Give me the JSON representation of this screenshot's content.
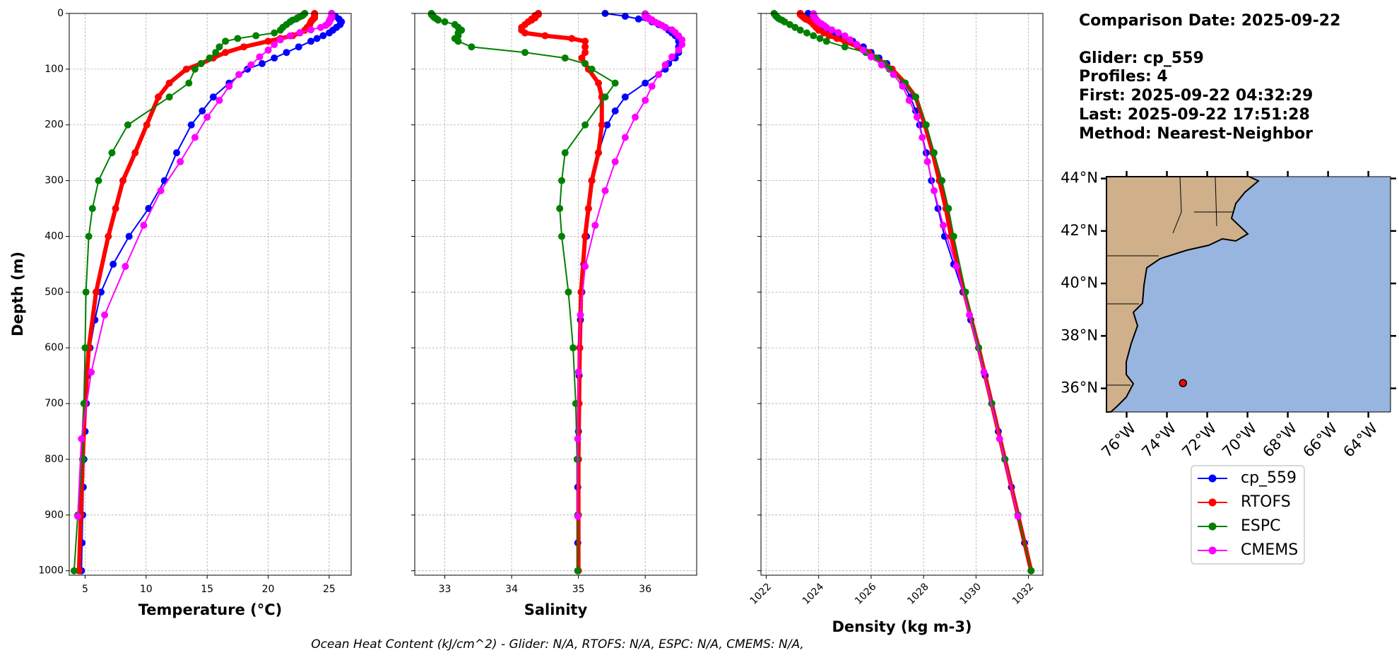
{
  "chart_data": [
    {
      "type": "profile",
      "ylabel": "Depth (m)",
      "ylim": [
        0,
        1008
      ],
      "y_inverted": true,
      "yticks": [
        0,
        100,
        200,
        300,
        400,
        500,
        600,
        700,
        800,
        900,
        1000
      ],
      "grid": true,
      "panels": [
        {
          "xlabel": "Temperature (°C)",
          "xlim": [
            3.7,
            26.8
          ],
          "xticks": [
            5,
            10,
            15,
            20,
            25
          ]
        },
        {
          "xlabel": "Salinity",
          "xlim": [
            32.55,
            36.77
          ],
          "xticks": [
            33,
            34,
            35,
            36
          ]
        },
        {
          "xlabel": "Density (kg m-3)",
          "xlim": [
            1021.8,
            1032.55
          ],
          "xticks": [
            1022,
            1024,
            1026,
            1028,
            1030,
            1032
          ],
          "xtick_rotation": 45
        }
      ],
      "series": [
        {
          "name": "cp_559",
          "color": "#0000ff",
          "linewidth": 2,
          "depth": [
            0,
            5,
            10,
            15,
            20,
            25,
            30,
            35,
            40,
            45,
            50,
            60,
            70,
            80,
            90,
            100,
            125,
            150,
            175,
            200,
            250,
            300,
            350,
            400,
            450,
            500,
            550,
            600,
            650,
            700,
            750,
            800,
            850,
            900,
            950,
            1000
          ],
          "values": [
            [
              25.2,
              25.5,
              25.8,
              26.0,
              25.9,
              25.6,
              25.3,
              25.0,
              24.5,
              24.0,
              23.5,
              22.5,
              21.5,
              20.5,
              19.5,
              18.3,
              16.8,
              15.5,
              14.6,
              13.7,
              12.5,
              11.5,
              10.2,
              8.6,
              7.3,
              6.3,
              5.8,
              5.4,
              5.2,
              5.1,
              5.0,
              4.9,
              4.85,
              4.8,
              4.75,
              4.7
            ],
            [
              35.4,
              35.7,
              35.9,
              36.1,
              36.2,
              36.3,
              36.35,
              36.4,
              36.45,
              36.5,
              36.5,
              36.5,
              36.5,
              36.45,
              36.35,
              36.3,
              36.0,
              35.7,
              35.55,
              35.43,
              35.3,
              35.2,
              35.15,
              35.12,
              35.08,
              35.05,
              35.03,
              35.02,
              35.01,
              35.0,
              35.0,
              35.0,
              34.99,
              34.99,
              34.99,
              34.99
            ],
            [
              1023.6,
              1023.7,
              1023.8,
              1023.9,
              1024.0,
              1024.2,
              1024.4,
              1024.6,
              1024.8,
              1025.0,
              1025.3,
              1025.7,
              1026.0,
              1026.3,
              1026.6,
              1026.8,
              1027.2,
              1027.5,
              1027.7,
              1027.85,
              1028.1,
              1028.3,
              1028.55,
              1028.8,
              1029.15,
              1029.5,
              1029.8,
              1030.1,
              1030.35,
              1030.6,
              1030.85,
              1031.1,
              1031.35,
              1031.6,
              1031.85,
              1032.1
            ]
          ]
        },
        {
          "name": "RTOFS",
          "color": "#ff0000",
          "linewidth": 6,
          "depth": [
            0,
            2,
            4,
            6,
            8,
            10,
            12,
            15,
            20,
            25,
            30,
            35,
            40,
            45,
            50,
            60,
            70,
            80,
            90,
            100,
            125,
            150,
            200,
            250,
            300,
            350,
            400,
            500,
            600,
            700,
            800,
            900,
            1000
          ],
          "values": [
            [
              23.8,
              23.8,
              23.8,
              23.8,
              23.8,
              23.7,
              23.6,
              23.5,
              23.4,
              23.2,
              23.0,
              22.6,
              22.0,
              21.0,
              20.0,
              18.0,
              16.5,
              15.5,
              14.5,
              13.3,
              11.9,
              11.0,
              10.05,
              9.1,
              8.1,
              7.5,
              6.9,
              5.9,
              5.3,
              5.0,
              4.8,
              4.65,
              4.5
            ],
            [
              34.4,
              34.4,
              34.35,
              34.35,
              34.35,
              34.3,
              34.3,
              34.25,
              34.2,
              34.15,
              34.15,
              34.2,
              34.5,
              34.9,
              35.1,
              35.1,
              35.1,
              35.05,
              35.1,
              35.15,
              35.3,
              35.35,
              35.35,
              35.3,
              35.2,
              35.15,
              35.1,
              35.04,
              35.02,
              35.01,
              35.0,
              35.0,
              35.0
            ],
            [
              1023.3,
              1023.3,
              1023.35,
              1023.4,
              1023.45,
              1023.5,
              1023.6,
              1023.7,
              1023.8,
              1023.9,
              1024.0,
              1024.2,
              1024.4,
              1024.7,
              1025.0,
              1025.5,
              1025.9,
              1026.2,
              1026.5,
              1026.8,
              1027.3,
              1027.7,
              1028.05,
              1028.35,
              1028.6,
              1028.85,
              1029.05,
              1029.55,
              1030.1,
              1030.6,
              1031.1,
              1031.6,
              1032.1
            ]
          ]
        },
        {
          "name": "ESPC",
          "color": "#008000",
          "linewidth": 2,
          "depth": [
            0,
            2,
            4,
            6,
            8,
            10,
            12,
            15,
            20,
            25,
            30,
            35,
            40,
            45,
            50,
            60,
            70,
            80,
            90,
            100,
            125,
            150,
            200,
            250,
            300,
            350,
            400,
            500,
            600,
            700,
            800,
            900,
            1000
          ],
          "values": [
            [
              23.0,
              22.9,
              22.8,
              22.6,
              22.4,
              22.3,
              22.0,
              21.8,
              21.5,
              21.2,
              21.0,
              20.5,
              19.0,
              17.5,
              16.5,
              16.0,
              15.7,
              15.2,
              14.5,
              14.0,
              13.5,
              11.9,
              8.5,
              7.2,
              6.1,
              5.6,
              5.3,
              5.07,
              5.0,
              4.9,
              4.8,
              4.4,
              4.1
            ],
            [
              32.8,
              32.8,
              32.82,
              32.83,
              32.85,
              32.88,
              32.9,
              33.0,
              33.15,
              33.2,
              33.25,
              33.2,
              33.2,
              33.15,
              33.2,
              33.4,
              34.2,
              34.8,
              35.1,
              35.2,
              35.55,
              35.4,
              35.1,
              34.8,
              34.75,
              34.72,
              34.75,
              34.85,
              34.92,
              34.96,
              34.98,
              34.99,
              34.99
            ],
            [
              1022.3,
              1022.33,
              1022.36,
              1022.4,
              1022.45,
              1022.5,
              1022.6,
              1022.7,
              1022.9,
              1023.1,
              1023.3,
              1023.55,
              1023.8,
              1024.05,
              1024.3,
              1025.0,
              1025.8,
              1026.2,
              1026.5,
              1026.7,
              1027.3,
              1027.7,
              1028.1,
              1028.4,
              1028.7,
              1028.95,
              1029.15,
              1029.6,
              1030.1,
              1030.6,
              1031.1,
              1031.6,
              1032.1
            ]
          ]
        },
        {
          "name": "CMEMS",
          "color": "#ff00ff",
          "linewidth": 2,
          "depth": [
            0.5,
            1.5,
            2.6,
            3.8,
            5.1,
            6.4,
            7.9,
            9.6,
            11.4,
            13.5,
            15.8,
            18.5,
            21.6,
            25.2,
            29.4,
            34.4,
            40.3,
            47.4,
            55.8,
            65.8,
            77.9,
            92.3,
            109.7,
            130.7,
            155.9,
            186.1,
            222.5,
            266,
            318.1,
            380.2,
            453.9,
            541.1,
            643.6,
            763.3,
            902.3
          ],
          "values": [
            [
              25.2,
              25.2,
              25.2,
              25.2,
              25.2,
              25.2,
              25.2,
              25.1,
              25.1,
              25.0,
              25.0,
              24.9,
              24.7,
              24.3,
              23.5,
              22.6,
              21.8,
              21.0,
              20.5,
              20.0,
              19.3,
              18.6,
              17.6,
              16.8,
              16.0,
              15.0,
              14.0,
              12.8,
              11.2,
              9.8,
              8.3,
              6.6,
              5.5,
              4.7,
              4.4
            ],
            [
              36.0,
              36.0,
              36.0,
              36.0,
              36.0,
              36.0,
              36.05,
              36.05,
              36.1,
              36.1,
              36.15,
              36.2,
              36.25,
              36.3,
              36.4,
              36.45,
              36.5,
              36.55,
              36.55,
              36.5,
              36.4,
              36.3,
              36.2,
              36.1,
              36.0,
              35.85,
              35.7,
              35.55,
              35.4,
              35.25,
              35.1,
              35.03,
              35.0,
              34.99,
              34.99
            ],
            [
              1023.8,
              1023.8,
              1023.8,
              1023.8,
              1023.82,
              1023.84,
              1023.86,
              1023.88,
              1023.9,
              1023.95,
              1024.0,
              1024.1,
              1024.2,
              1024.3,
              1024.5,
              1024.75,
              1025.0,
              1025.2,
              1025.45,
              1025.7,
              1026.0,
              1026.4,
              1026.85,
              1027.2,
              1027.45,
              1027.75,
              1027.95,
              1028.15,
              1028.4,
              1028.75,
              1029.25,
              1029.75,
              1030.3,
              1030.9,
              1031.6
            ]
          ]
        }
      ]
    },
    {
      "type": "map",
      "xlim": [
        -77.0,
        -62.9
      ],
      "ylim": [
        35.1,
        44.07
      ],
      "xticks": [
        {
          "value": -76,
          "label": "76°W"
        },
        {
          "value": -74,
          "label": "74°W"
        },
        {
          "value": -72,
          "label": "72°W"
        },
        {
          "value": -70,
          "label": "70°W"
        },
        {
          "value": -68,
          "label": "68°W"
        },
        {
          "value": -66,
          "label": "66°W"
        },
        {
          "value": -64,
          "label": "64°W"
        }
      ],
      "yticks": [
        {
          "value": 36,
          "label": "36°N"
        },
        {
          "value": 38,
          "label": "38°N"
        },
        {
          "value": 40,
          "label": "40°N"
        },
        {
          "value": 42,
          "label": "42°N"
        },
        {
          "value": 44,
          "label": "44°N"
        }
      ],
      "land_color": "#cfb08a",
      "ocean_color": "#98b5e0",
      "points": [
        {
          "lon": -73.2,
          "lat": 36.2,
          "color": "#ff0000"
        }
      ]
    }
  ],
  "info": [
    "Comparison Date: 2025-09-22",
    "Glider: cp_559",
    "Profiles: 4",
    "First: 2025-09-22 04:32:29",
    "Last: 2025-09-22 17:51:28",
    "Method: Nearest-Neighbor"
  ],
  "footer": "Ocean Heat Content (kJ/cm^2) - Glider: N/A,  RTOFS: N/A,  ESPC: N/A,  CMEMS: N/A,"
}
